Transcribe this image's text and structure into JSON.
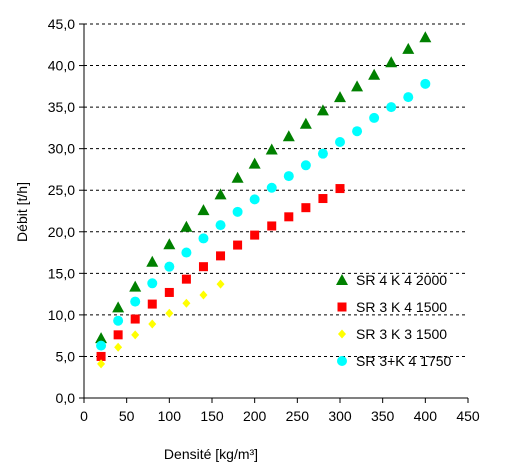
{
  "chart_data": {
    "type": "scatter",
    "xlabel": "Densité [kg/m³]",
    "ylabel": "Débit [t/h]",
    "xlim": [
      0,
      450
    ],
    "ylim": [
      0,
      45
    ],
    "x_ticks": [
      "0",
      "50",
      "100",
      "150",
      "200",
      "250",
      "300",
      "350",
      "400",
      "450"
    ],
    "y_ticks": [
      "0,0",
      "5,0",
      "10,0",
      "15,0",
      "20,0",
      "25,0",
      "30,0",
      "35,0",
      "40,0",
      "45,0"
    ],
    "grid": "horizontal dashed",
    "legend_position": "bottom-right",
    "series": [
      {
        "name": "SR 4 K 4 2000",
        "color": "#008000",
        "marker": "triangle",
        "x": [
          20,
          40,
          60,
          80,
          100,
          120,
          140,
          160,
          180,
          200,
          220,
          240,
          260,
          280,
          300,
          320,
          340,
          360,
          380,
          400
        ],
        "y": [
          7.2,
          10.9,
          13.4,
          16.4,
          18.5,
          20.6,
          22.6,
          24.5,
          26.5,
          28.2,
          29.9,
          31.5,
          33.0,
          34.6,
          36.2,
          37.5,
          38.9,
          40.4,
          42.0,
          43.4
        ]
      },
      {
        "name": "SR 3 K 4 1500",
        "color": "#ff0000",
        "marker": "square",
        "x": [
          20,
          40,
          60,
          80,
          100,
          120,
          140,
          160,
          180,
          200,
          220,
          240,
          260,
          280,
          300
        ],
        "y": [
          5.0,
          7.6,
          9.5,
          11.3,
          12.7,
          14.3,
          15.8,
          17.1,
          18.4,
          19.6,
          20.7,
          21.8,
          22.9,
          24.0,
          25.2
        ]
      },
      {
        "name": "SR 3 K 3 1500",
        "color": "#ffff00",
        "marker": "diamond",
        "x": [
          20,
          40,
          60,
          80,
          100,
          120,
          140,
          160
        ],
        "y": [
          4.1,
          6.1,
          7.6,
          8.9,
          10.2,
          11.4,
          12.4,
          13.7
        ]
      },
      {
        "name": "SR 3+K 4 1750",
        "color": "#00ffff",
        "marker": "circle",
        "x": [
          20,
          40,
          60,
          80,
          100,
          120,
          140,
          160,
          180,
          200,
          220,
          240,
          260,
          280,
          300,
          320,
          340,
          360,
          380,
          400
        ],
        "y": [
          6.3,
          9.3,
          11.6,
          13.8,
          15.8,
          17.5,
          19.2,
          20.8,
          22.4,
          23.9,
          25.3,
          26.7,
          28.0,
          29.4,
          30.8,
          32.1,
          33.7,
          35.0,
          36.2,
          37.8
        ]
      }
    ]
  }
}
